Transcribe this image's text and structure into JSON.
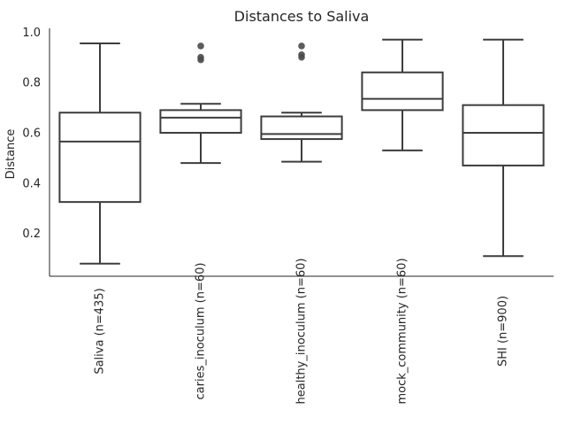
{
  "chart_data": {
    "type": "box",
    "title": "Distances to Saliva",
    "xlabel": "",
    "ylabel": "Distance",
    "ylim": [
      0.03,
      1.015
    ],
    "yticks": [
      0.2,
      0.4,
      0.6,
      0.8,
      1.0
    ],
    "ytick_labels": [
      "0.2",
      "0.4",
      "0.6",
      "0.8",
      "1.0"
    ],
    "grid": false,
    "categories": [
      "Saliva (n=435)",
      "caries_inoculum (n=60)",
      "healthy_inoculum (n=60)",
      "mock_community (n=60)",
      "SHI (n=900)"
    ],
    "boxes": [
      {
        "whisker_low": 0.08,
        "q1": 0.325,
        "median": 0.565,
        "q3": 0.68,
        "whisker_high": 0.955,
        "outliers": []
      },
      {
        "whisker_low": 0.48,
        "q1": 0.6,
        "median": 0.66,
        "q3": 0.69,
        "whisker_high": 0.715,
        "outliers": [
          0.89,
          0.9,
          0.945
        ]
      },
      {
        "whisker_low": 0.485,
        "q1": 0.575,
        "median": 0.595,
        "q3": 0.665,
        "whisker_high": 0.68,
        "outliers": [
          0.9,
          0.91,
          0.945
        ]
      },
      {
        "whisker_low": 0.53,
        "q1": 0.69,
        "median": 0.735,
        "q3": 0.84,
        "whisker_high": 0.97,
        "outliers": []
      },
      {
        "whisker_low": 0.11,
        "q1": 0.47,
        "median": 0.6,
        "q3": 0.71,
        "whisker_high": 0.97,
        "outliers": []
      }
    ],
    "colors": {
      "line": "#3d3d3d",
      "outlier": "#4a4a4a",
      "axis": "#262626"
    }
  }
}
